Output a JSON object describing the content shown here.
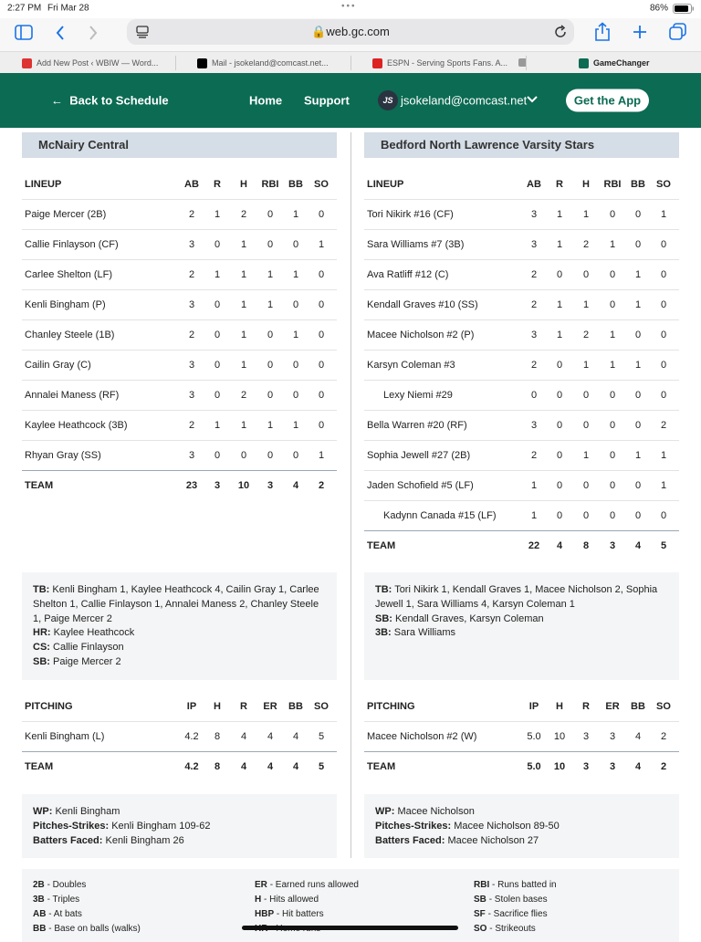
{
  "status_bar": {
    "time": "2:27 PM",
    "date": "Fri Mar 28",
    "battery": "86%"
  },
  "browser": {
    "url": "web.gc.com",
    "tabs": [
      "Add New Post ‹ WBIW — Word...",
      "Mail - jsokeland@comcast.net...",
      "ESPN - Serving Sports Fans. A...",
      "GameChanger"
    ]
  },
  "nav": {
    "back": "Back to Schedule",
    "home": "Home",
    "support": "Support",
    "initials": "JS",
    "account": "jsokeland@comcast.net",
    "app_button": "Get the App"
  },
  "lineup_columns": [
    "LINEUP",
    "AB",
    "R",
    "H",
    "RBI",
    "BB",
    "SO"
  ],
  "pitching_columns": [
    "PITCHING",
    "IP",
    "H",
    "R",
    "ER",
    "BB",
    "SO"
  ],
  "teams": [
    {
      "name": "McNairy Central",
      "lineup": {
        "rows": [
          {
            "name": "Paige Mercer (2B)",
            "stats": [
              2,
              1,
              2,
              0,
              1,
              0
            ]
          },
          {
            "name": "Callie Finlayson (CF)",
            "stats": [
              3,
              0,
              1,
              0,
              0,
              1
            ]
          },
          {
            "name": "Carlee Shelton (LF)",
            "stats": [
              2,
              1,
              1,
              1,
              1,
              0
            ]
          },
          {
            "name": "Kenli Bingham (P)",
            "stats": [
              3,
              0,
              1,
              1,
              0,
              0
            ]
          },
          {
            "name": "Chanley Steele (1B)",
            "stats": [
              2,
              0,
              1,
              0,
              1,
              0
            ]
          },
          {
            "name": "Cailin Gray (C)",
            "stats": [
              3,
              0,
              1,
              0,
              0,
              0
            ]
          },
          {
            "name": "Annalei Maness (RF)",
            "stats": [
              3,
              0,
              2,
              0,
              0,
              0
            ]
          },
          {
            "name": "Kaylee Heathcock (3B)",
            "stats": [
              2,
              1,
              1,
              1,
              1,
              0
            ]
          },
          {
            "name": "Rhyan Gray (SS)",
            "stats": [
              3,
              0,
              0,
              0,
              0,
              1
            ]
          }
        ],
        "total": {
          "label": "TEAM",
          "stats": [
            23,
            3,
            10,
            3,
            4,
            2
          ]
        }
      },
      "notes": [
        {
          "label": "TB:",
          "text": "Kenli Bingham 1, Kaylee Heathcock 4, Cailin Gray 1, Carlee Shelton 1, Callie Finlayson 1, Annalei Maness 2, Chanley Steele 1, Paige Mercer 2"
        },
        {
          "label": "HR:",
          "text": "Kaylee Heathcock"
        },
        {
          "label": "CS:",
          "text": "Callie Finlayson"
        },
        {
          "label": "SB:",
          "text": "Paige Mercer 2"
        }
      ],
      "pitching": {
        "rows": [
          {
            "name": "Kenli Bingham (L)",
            "stats": [
              "4.2",
              8,
              4,
              4,
              4,
              5
            ]
          }
        ],
        "total": {
          "label": "TEAM",
          "stats": [
            "4.2",
            8,
            4,
            4,
            4,
            5
          ]
        }
      },
      "pitching_notes": [
        {
          "label": "WP:",
          "text": "Kenli Bingham"
        },
        {
          "label": "Pitches-Strikes:",
          "text": "Kenli Bingham 109-62"
        },
        {
          "label": "Batters Faced:",
          "text": "Kenli Bingham 26"
        }
      ]
    },
    {
      "name": "Bedford North Lawrence Varsity Stars",
      "lineup": {
        "rows": [
          {
            "name": "Tori Nikirk #16 (CF)",
            "stats": [
              3,
              1,
              1,
              0,
              0,
              1
            ]
          },
          {
            "name": "Sara Williams #7 (3B)",
            "stats": [
              3,
              1,
              2,
              1,
              0,
              0
            ]
          },
          {
            "name": "Ava Ratliff #12 (C)",
            "stats": [
              2,
              0,
              0,
              0,
              1,
              0
            ]
          },
          {
            "name": "Kendall Graves #10 (SS)",
            "stats": [
              2,
              1,
              1,
              0,
              1,
              0
            ]
          },
          {
            "name": "Macee Nicholson #2 (P)",
            "stats": [
              3,
              1,
              2,
              1,
              0,
              0
            ]
          },
          {
            "name": "Karsyn Coleman #3",
            "stats": [
              2,
              0,
              1,
              1,
              1,
              0
            ]
          },
          {
            "name": "Lexy Niemi #29",
            "stats": [
              0,
              0,
              0,
              0,
              0,
              0
            ],
            "indent": true
          },
          {
            "name": "Bella Warren #20 (RF)",
            "stats": [
              3,
              0,
              0,
              0,
              0,
              2
            ]
          },
          {
            "name": "Sophia Jewell #27 (2B)",
            "stats": [
              2,
              0,
              1,
              0,
              1,
              1
            ]
          },
          {
            "name": "Jaden Schofield #5 (LF)",
            "stats": [
              1,
              0,
              0,
              0,
              0,
              1
            ]
          },
          {
            "name": "Kadynn Canada #15 (LF)",
            "stats": [
              1,
              0,
              0,
              0,
              0,
              0
            ],
            "indent": true
          }
        ],
        "total": {
          "label": "TEAM",
          "stats": [
            22,
            4,
            8,
            3,
            4,
            5
          ]
        }
      },
      "notes": [
        {
          "label": "TB:",
          "text": "Tori Nikirk 1, Kendall Graves 1, Macee Nicholson 2, Sophia Jewell 1, Sara Williams 4, Karsyn Coleman 1"
        },
        {
          "label": "SB:",
          "text": "Kendall Graves, Karsyn Coleman"
        },
        {
          "label": "3B:",
          "text": "Sara Williams"
        }
      ],
      "pitching": {
        "rows": [
          {
            "name": "Macee Nicholson #2 (W)",
            "stats": [
              "5.0",
              10,
              3,
              3,
              4,
              2
            ]
          }
        ],
        "total": {
          "label": "TEAM",
          "stats": [
            "5.0",
            10,
            3,
            3,
            4,
            2
          ]
        }
      },
      "pitching_notes": [
        {
          "label": "WP:",
          "text": "Macee Nicholson"
        },
        {
          "label": "Pitches-Strikes:",
          "text": "Macee Nicholson 89-50"
        },
        {
          "label": "Batters Faced:",
          "text": "Macee Nicholson 27"
        }
      ]
    }
  ],
  "legend": [
    [
      {
        "key": "2B",
        "desc": "- Doubles"
      },
      {
        "key": "3B",
        "desc": "- Triples"
      },
      {
        "key": "AB",
        "desc": "- At bats"
      },
      {
        "key": "BB",
        "desc": "- Base on balls (walks)"
      }
    ],
    [
      {
        "key": "ER",
        "desc": "- Earned runs allowed"
      },
      {
        "key": "H",
        "desc": "- Hits allowed"
      },
      {
        "key": "HBP",
        "desc": "- Hit batters"
      },
      {
        "key": "HR",
        "desc": "- Home runs"
      }
    ],
    [
      {
        "key": "RBI",
        "desc": "- Runs batted in"
      },
      {
        "key": "SB",
        "desc": "- Stolen bases"
      },
      {
        "key": "SF",
        "desc": "- Sacrifice flies"
      },
      {
        "key": "SO",
        "desc": "- Strikeouts"
      }
    ]
  ]
}
